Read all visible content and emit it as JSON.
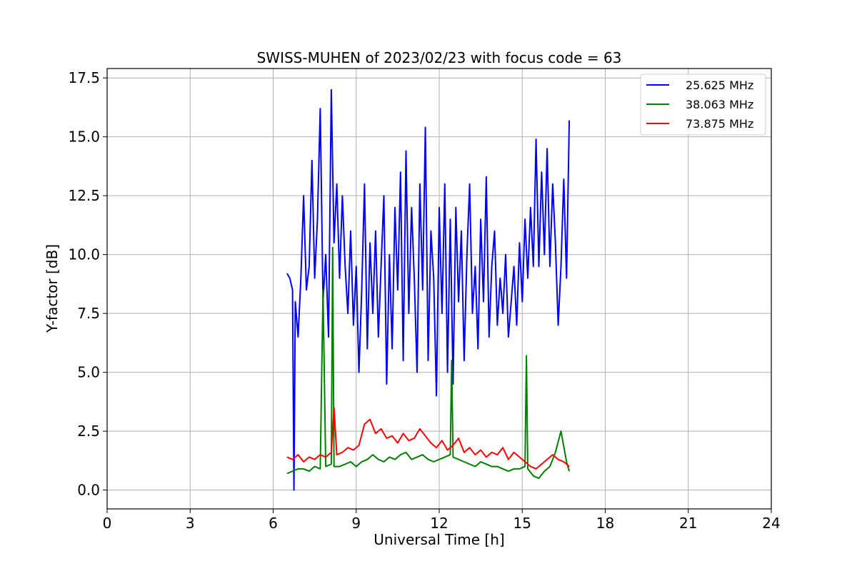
{
  "chart_data": {
    "type": "line",
    "title": "SWISS-MUHEN of 2023/02/23 with focus code = 63",
    "xlabel": "Universal Time [h]",
    "ylabel": "Y-factor [dB]",
    "xlim": [
      0,
      24
    ],
    "ylim": [
      -0.8,
      17.9
    ],
    "xticks": [
      0,
      3,
      6,
      9,
      12,
      15,
      18,
      21,
      24
    ],
    "xtick_labels": [
      "0",
      "3",
      "6",
      "9",
      "12",
      "15",
      "18",
      "21",
      "24"
    ],
    "yticks": [
      0,
      2.5,
      5,
      7.5,
      10,
      12.5,
      15,
      17.5
    ],
    "ytick_labels": [
      "0.0",
      "2.5",
      "5.0",
      "7.5",
      "10.0",
      "12.5",
      "15.0",
      "17.5"
    ],
    "grid": true,
    "legend_position": "top-right",
    "series": [
      {
        "name": "25.625 MHz",
        "color": "#0000ff",
        "x": [
          6.5,
          6.6,
          6.7,
          6.75,
          6.8,
          6.9,
          7.0,
          7.1,
          7.2,
          7.3,
          7.4,
          7.5,
          7.6,
          7.7,
          7.8,
          7.9,
          8.0,
          8.1,
          8.2,
          8.3,
          8.4,
          8.5,
          8.6,
          8.7,
          8.8,
          8.9,
          9.0,
          9.1,
          9.2,
          9.3,
          9.4,
          9.5,
          9.6,
          9.7,
          9.8,
          9.9,
          10.0,
          10.1,
          10.2,
          10.3,
          10.4,
          10.5,
          10.6,
          10.7,
          10.8,
          10.9,
          11.0,
          11.1,
          11.2,
          11.3,
          11.4,
          11.5,
          11.6,
          11.7,
          11.8,
          11.9,
          12.0,
          12.1,
          12.2,
          12.3,
          12.4,
          12.5,
          12.6,
          12.7,
          12.8,
          12.9,
          13.0,
          13.1,
          13.2,
          13.3,
          13.4,
          13.5,
          13.6,
          13.7,
          13.8,
          13.9,
          14.0,
          14.1,
          14.2,
          14.3,
          14.4,
          14.5,
          14.6,
          14.7,
          14.8,
          14.9,
          15.0,
          15.1,
          15.2,
          15.3,
          15.4,
          15.5,
          15.6,
          15.7,
          15.8,
          15.9,
          16.0,
          16.1,
          16.2,
          16.3,
          16.4,
          16.5,
          16.6,
          16.7
        ],
        "values": [
          9.2,
          9.0,
          8.5,
          0.0,
          8.0,
          6.5,
          9.0,
          12.5,
          8.5,
          9.5,
          14.0,
          9.0,
          11.5,
          16.2,
          8.0,
          10.0,
          6.5,
          17.0,
          10.5,
          13.0,
          9.0,
          12.5,
          9.5,
          7.5,
          11.0,
          7.0,
          9.5,
          5.0,
          8.5,
          13.0,
          6.0,
          10.5,
          7.5,
          11.0,
          6.5,
          9.5,
          12.5,
          4.5,
          10.0,
          6.0,
          12.0,
          8.5,
          13.5,
          5.5,
          14.4,
          7.5,
          12.0,
          9.0,
          5.0,
          13.0,
          8.5,
          15.4,
          5.5,
          11.0,
          9.0,
          4.0,
          12.0,
          7.5,
          13.0,
          5.0,
          11.5,
          4.5,
          12.0,
          8.0,
          11.0,
          5.5,
          10.0,
          13.0,
          7.5,
          9.5,
          6.0,
          11.5,
          8.0,
          13.3,
          6.5,
          9.5,
          11.0,
          7.0,
          9.0,
          7.5,
          10.0,
          6.5,
          8.0,
          9.5,
          7.0,
          10.5,
          8.0,
          11.5,
          9.0,
          12.0,
          9.5,
          14.9,
          9.5,
          13.5,
          10.0,
          14.5,
          9.5,
          13.0,
          10.5,
          7.0,
          9.5,
          13.2,
          9.0,
          15.7
        ]
      },
      {
        "name": "38.063 MHz",
        "color": "#008000",
        "x": [
          6.5,
          6.7,
          6.9,
          7.1,
          7.3,
          7.5,
          7.7,
          7.8,
          7.9,
          8.1,
          8.15,
          8.2,
          8.4,
          8.6,
          8.8,
          9.0,
          9.2,
          9.4,
          9.6,
          9.8,
          10.0,
          10.2,
          10.4,
          10.6,
          10.8,
          11.0,
          11.2,
          11.4,
          11.6,
          11.8,
          12.0,
          12.2,
          12.4,
          12.45,
          12.5,
          12.7,
          12.9,
          13.1,
          13.3,
          13.5,
          13.7,
          13.9,
          14.1,
          14.3,
          14.5,
          14.7,
          14.9,
          15.1,
          15.15,
          15.2,
          15.4,
          15.6,
          15.8,
          16.0,
          16.2,
          16.4,
          16.6,
          16.7
        ],
        "values": [
          0.7,
          0.8,
          0.9,
          0.9,
          0.8,
          1.0,
          0.9,
          8.5,
          1.0,
          1.1,
          10.3,
          1.0,
          1.0,
          1.1,
          1.2,
          1.0,
          1.2,
          1.3,
          1.5,
          1.3,
          1.2,
          1.4,
          1.3,
          1.5,
          1.6,
          1.3,
          1.4,
          1.5,
          1.3,
          1.2,
          1.3,
          1.4,
          1.5,
          5.5,
          1.4,
          1.3,
          1.2,
          1.1,
          1.0,
          1.2,
          1.1,
          1.0,
          1.0,
          0.9,
          0.8,
          0.9,
          0.9,
          1.0,
          5.7,
          0.9,
          0.6,
          0.5,
          0.8,
          1.0,
          1.6,
          2.5,
          1.2,
          0.8
        ]
      },
      {
        "name": "73.875 MHz",
        "color": "#ff0000",
        "x": [
          6.5,
          6.7,
          6.9,
          7.1,
          7.3,
          7.5,
          7.7,
          7.9,
          8.1,
          8.2,
          8.3,
          8.5,
          8.7,
          8.9,
          9.1,
          9.3,
          9.5,
          9.7,
          9.9,
          10.1,
          10.3,
          10.5,
          10.7,
          10.9,
          11.1,
          11.3,
          11.5,
          11.7,
          11.9,
          12.1,
          12.3,
          12.5,
          12.7,
          12.9,
          13.1,
          13.3,
          13.5,
          13.7,
          13.9,
          14.1,
          14.3,
          14.5,
          14.7,
          14.9,
          15.1,
          15.3,
          15.5,
          15.7,
          15.9,
          16.1,
          16.3,
          16.5,
          16.7
        ],
        "values": [
          1.4,
          1.3,
          1.5,
          1.2,
          1.4,
          1.3,
          1.5,
          1.4,
          1.6,
          3.5,
          1.5,
          1.6,
          1.8,
          1.7,
          1.9,
          2.8,
          3.0,
          2.4,
          2.6,
          2.2,
          2.3,
          2.0,
          2.4,
          2.1,
          2.2,
          2.6,
          2.3,
          2.0,
          1.8,
          2.1,
          1.7,
          1.9,
          2.2,
          1.6,
          1.8,
          1.5,
          1.7,
          1.4,
          1.6,
          1.5,
          1.8,
          1.3,
          1.6,
          1.4,
          1.2,
          1.0,
          0.9,
          1.1,
          1.3,
          1.5,
          1.3,
          1.2,
          1.0
        ]
      }
    ]
  }
}
